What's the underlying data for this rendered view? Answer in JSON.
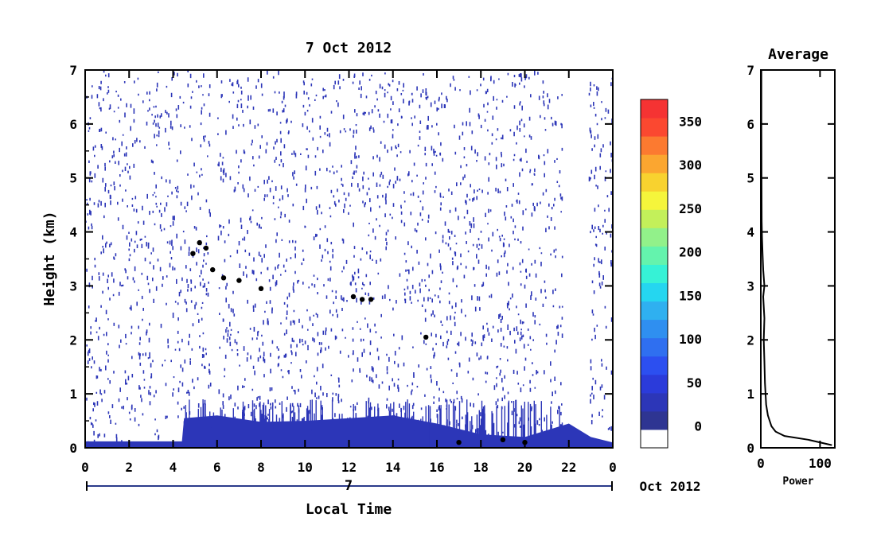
{
  "chart_data": [
    {
      "type": "heatmap",
      "title": "7 Oct 2012",
      "ylabel": "Height (km)",
      "xlabel": "Local Time",
      "date_day": "7",
      "date_month_year": "Oct 2012",
      "x_ticks": [
        "0",
        "2",
        "4",
        "6",
        "8",
        "10",
        "12",
        "14",
        "16",
        "18",
        "20",
        "22",
        "0"
      ],
      "x_range": [
        0,
        24
      ],
      "y_ticks": [
        "0",
        "1",
        "2",
        "3",
        "4",
        "5",
        "6",
        "7"
      ],
      "y_range": [
        0,
        7
      ],
      "grid": false,
      "colorbar": {
        "ticks": [
          "0",
          "50",
          "100",
          "150",
          "200",
          "250",
          "300",
          "350"
        ],
        "range": [
          -25,
          375
        ],
        "colors": [
          "#ffffff",
          "#2e3592",
          "#2c36b8",
          "#2b3bda",
          "#2c4ff0",
          "#2f6ff0",
          "#2f8ff0",
          "#2fb0f0",
          "#25d6f0",
          "#36f2d6",
          "#64f3ad",
          "#92f18a",
          "#c3f05a",
          "#f5f53b",
          "#f8d22f",
          "#fba630",
          "#fc7a30",
          "#fb4830",
          "#f53333"
        ]
      },
      "background_echo_level": 25,
      "boundary_layer_echo": [
        {
          "x": 0.0,
          "top_km": 0.12
        },
        {
          "x": 4.4,
          "top_km": 0.12
        },
        {
          "x": 4.5,
          "top_km": 0.55
        },
        {
          "x": 6.0,
          "top_km": 0.6
        },
        {
          "x": 8.0,
          "top_km": 0.48
        },
        {
          "x": 10.0,
          "top_km": 0.5
        },
        {
          "x": 12.0,
          "top_km": 0.55
        },
        {
          "x": 14.0,
          "top_km": 0.6
        },
        {
          "x": 16.0,
          "top_km": 0.45
        },
        {
          "x": 18.0,
          "top_km": 0.25
        },
        {
          "x": 20.0,
          "top_km": 0.2
        },
        {
          "x": 22.0,
          "top_km": 0.45
        },
        {
          "x": 23.0,
          "top_km": 0.2
        },
        {
          "x": 24.0,
          "top_km": 0.1
        }
      ],
      "strong_echo_trace": [
        {
          "x": 4.9,
          "y": 3.6
        },
        {
          "x": 5.2,
          "y": 3.8
        },
        {
          "x": 5.5,
          "y": 3.7
        },
        {
          "x": 5.8,
          "y": 3.3
        },
        {
          "x": 6.3,
          "y": 3.15
        },
        {
          "x": 7.0,
          "y": 3.1
        },
        {
          "x": 8.0,
          "y": 2.95
        },
        {
          "x": 12.2,
          "y": 2.8
        },
        {
          "x": 12.6,
          "y": 2.75
        },
        {
          "x": 13.0,
          "y": 2.75
        },
        {
          "x": 15.5,
          "y": 2.05
        },
        {
          "x": 17.0,
          "y": 0.1
        },
        {
          "x": 19.0,
          "y": 0.15
        },
        {
          "x": 20.0,
          "y": 0.1
        }
      ]
    },
    {
      "type": "line",
      "title": "Average",
      "xlabel": "Power",
      "x_ticks": [
        "0",
        "100"
      ],
      "x_range": [
        0,
        125
      ],
      "y_ticks": [
        "0",
        "1",
        "2",
        "3",
        "4",
        "5",
        "6",
        "7"
      ],
      "y_range": [
        0,
        7
      ],
      "series": [
        {
          "x": [
            120,
            80,
            40,
            25,
            18,
            12,
            9,
            7,
            6,
            5,
            6,
            4,
            6,
            4,
            3,
            2,
            1.5,
            1.2,
            1,
            1
          ],
          "y": [
            0.05,
            0.15,
            0.22,
            0.3,
            0.4,
            0.6,
            0.8,
            1.2,
            1.6,
            2.0,
            2.4,
            2.8,
            3.0,
            3.3,
            3.6,
            3.9,
            4.2,
            5.0,
            6.0,
            7.0
          ]
        }
      ]
    }
  ]
}
